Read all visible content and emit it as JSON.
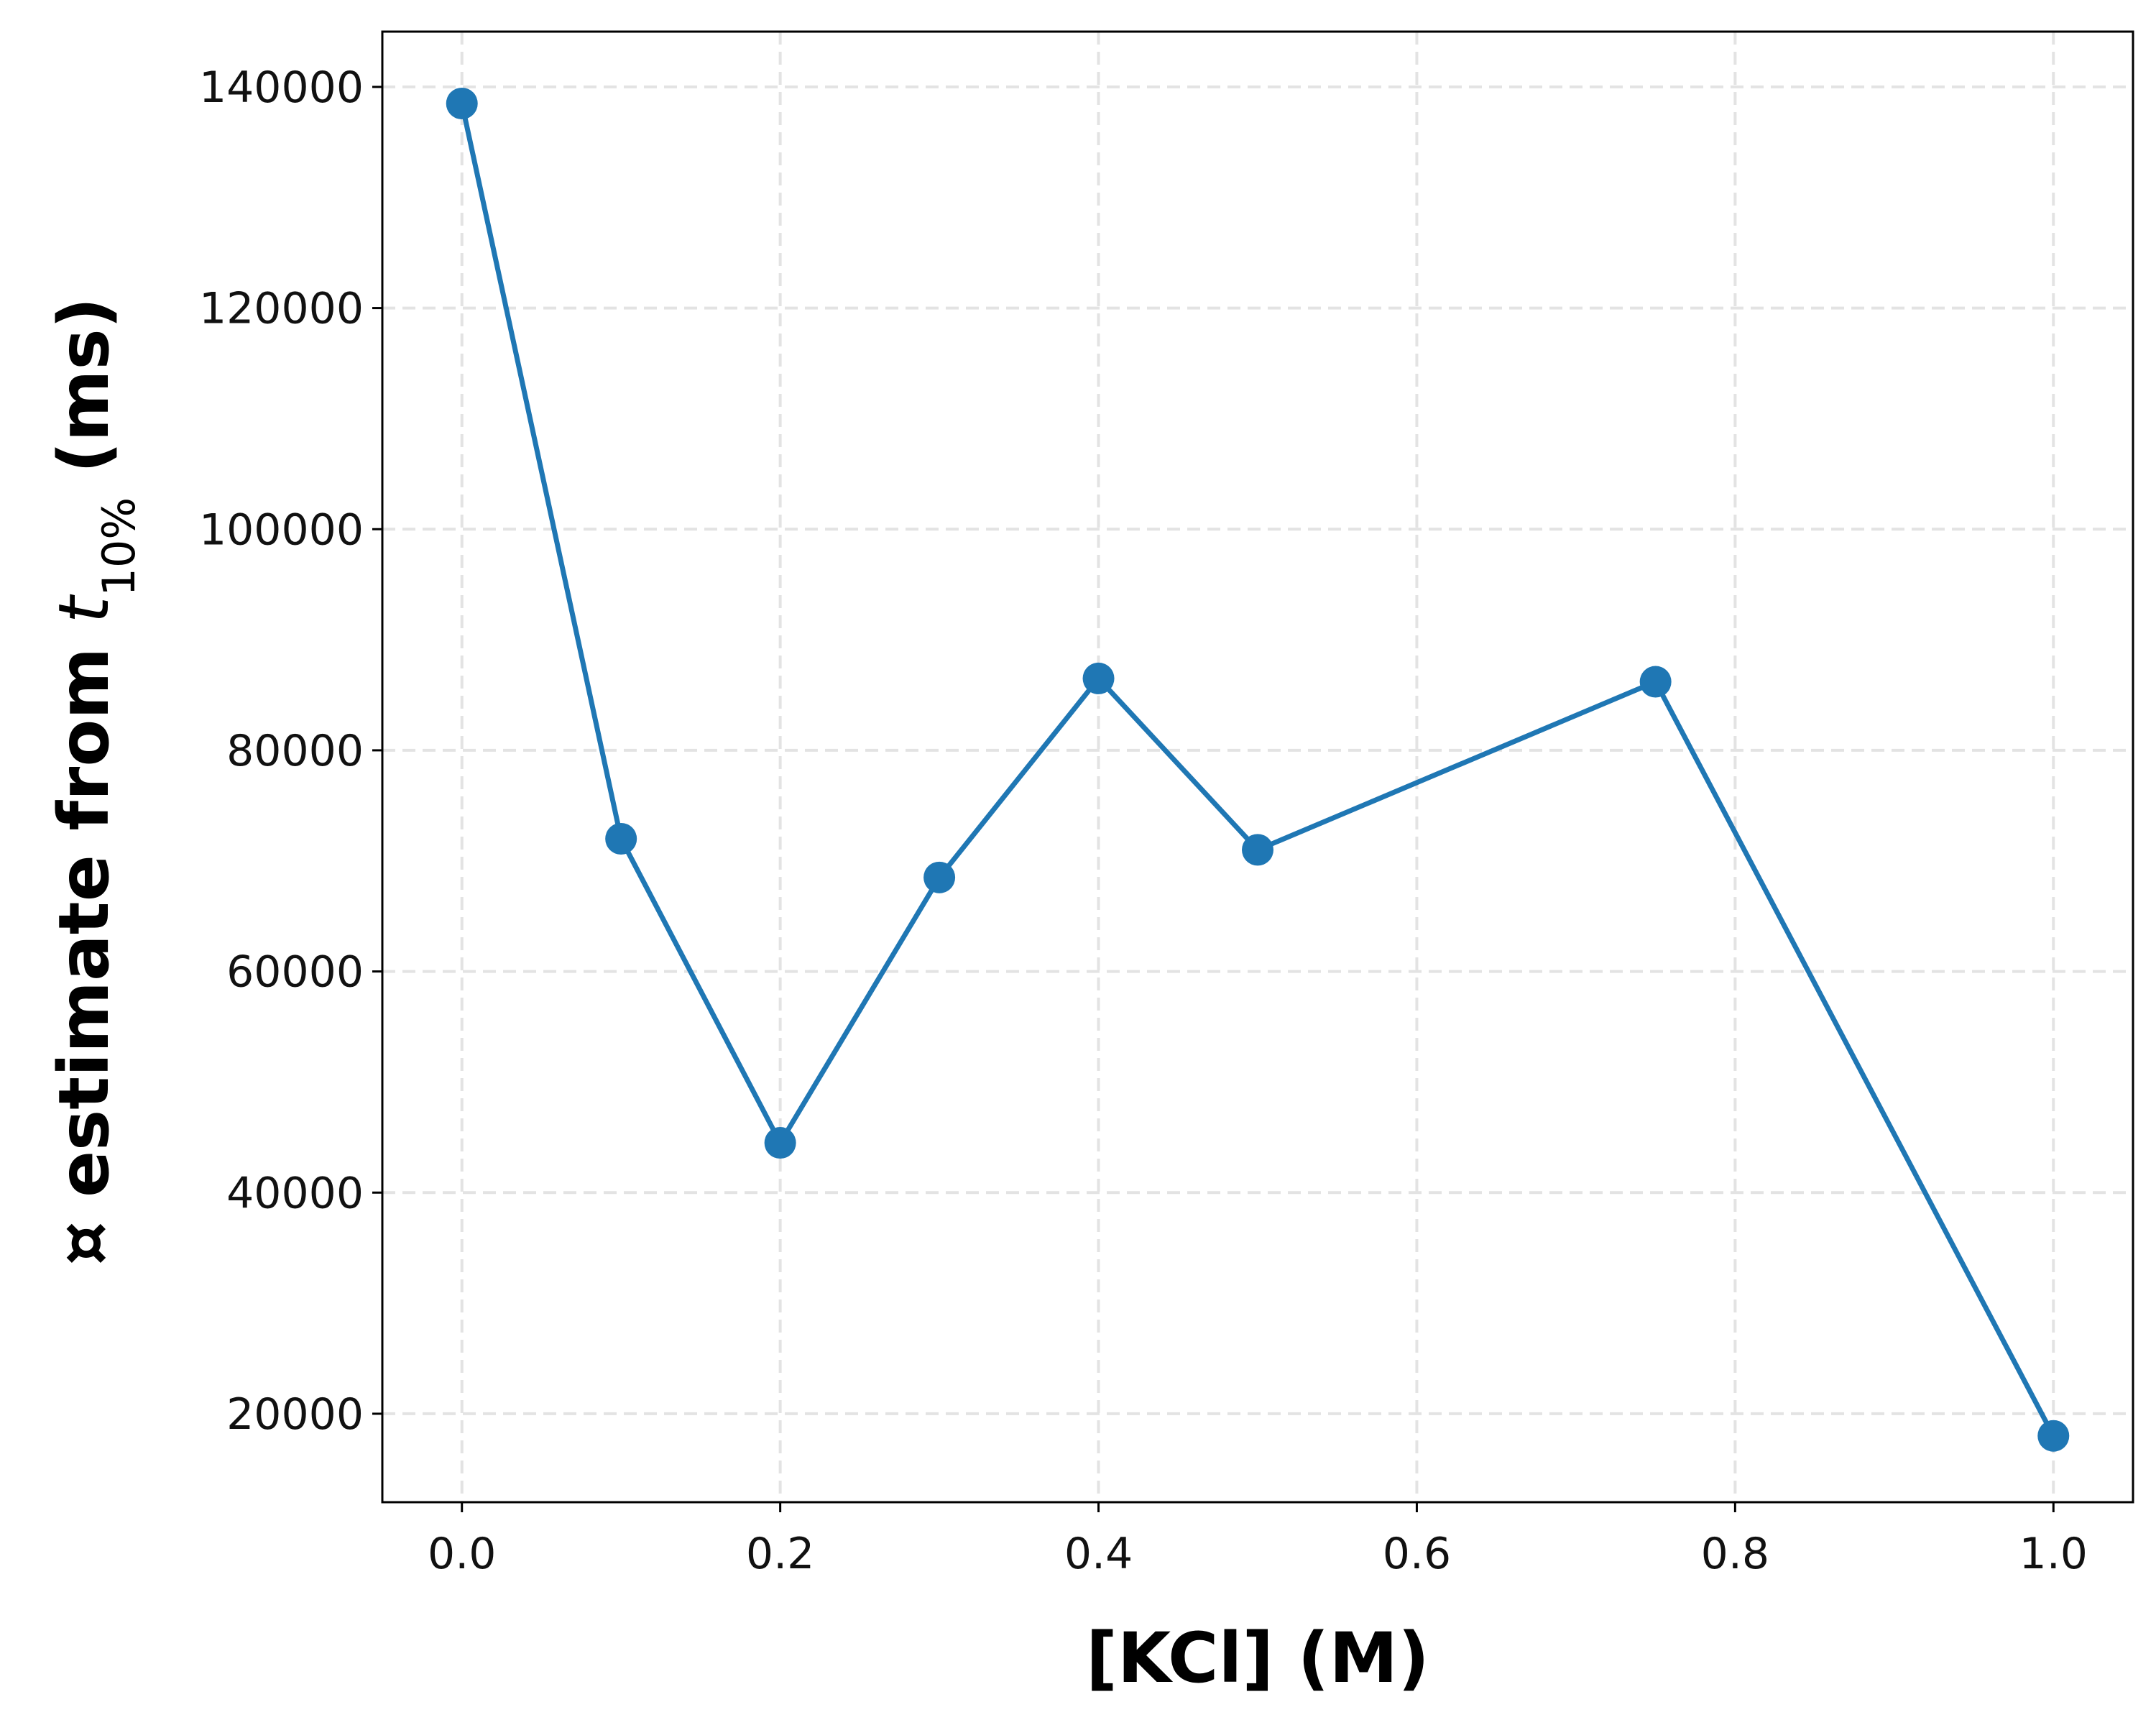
{
  "chart_data": {
    "type": "line",
    "title": "",
    "xlabel": "[KCl] (M)",
    "ylabel": {
      "prefix": "¤ estimate from ",
      "var": "t",
      "subscript": "10%",
      "suffix": " (ms)"
    },
    "xlim": [
      -0.05,
      1.05
    ],
    "ylim": [
      12000,
      145000
    ],
    "x_ticks": [
      0.0,
      0.2,
      0.4,
      0.6,
      0.8,
      1.0
    ],
    "x_tick_labels": [
      "0.0",
      "0.2",
      "0.4",
      "0.6",
      "0.8",
      "1.0"
    ],
    "y_ticks": [
      20000,
      40000,
      60000,
      80000,
      100000,
      120000,
      140000
    ],
    "y_tick_labels": [
      "20000",
      "40000",
      "60000",
      "80000",
      "100000",
      "120000",
      "140000"
    ],
    "grid": true,
    "series": [
      {
        "x": [
          0.0,
          0.1,
          0.2,
          0.3,
          0.4,
          0.5,
          0.75,
          1.0
        ],
        "y": [
          138500,
          72000,
          44500,
          68500,
          86500,
          71000,
          86200,
          18000
        ],
        "color": "#1f77b4",
        "marker": "circle"
      }
    ]
  }
}
